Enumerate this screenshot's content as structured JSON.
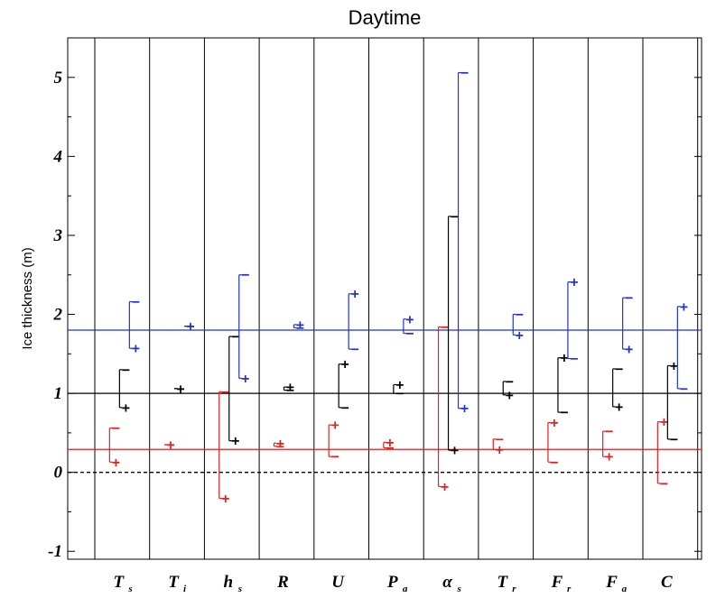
{
  "chart_data": {
    "type": "scatter",
    "title": "Daytime",
    "ylabel": "Ice thickness (m)",
    "ylim": [
      -1.1,
      5.5
    ],
    "yticks": [
      "-1",
      "0",
      "1",
      "2",
      "3",
      "4",
      "5"
    ],
    "categories": [
      {
        "main": "T",
        "sub": "s"
      },
      {
        "main": "T",
        "sub": "i"
      },
      {
        "main": "h",
        "sub": "s"
      },
      {
        "main": "R",
        "sub": ""
      },
      {
        "main": "U",
        "sub": ""
      },
      {
        "main": "P",
        "sub": "a"
      },
      {
        "main": "α",
        "sub": "s"
      },
      {
        "main": "T",
        "sub": "r"
      },
      {
        "main": "F",
        "sub": "r"
      },
      {
        "main": "F",
        "sub": "a"
      },
      {
        "main": "C",
        "sub": ""
      }
    ],
    "reference_lines": [
      {
        "color": "#2233cc",
        "value": 1.8
      },
      {
        "color": "#000000",
        "value": 1.0
      },
      {
        "color": "#dd2222",
        "value": 0.29
      },
      {
        "color": "#000000",
        "value": 0.0,
        "dashed": true
      }
    ],
    "series": [
      {
        "color": "#dd2222",
        "plus": [
          0.13,
          0.35,
          -0.33,
          0.37,
          0.6,
          0.38,
          -0.18,
          0.29,
          0.63,
          0.2,
          0.64
        ],
        "minus": [
          0.56,
          0.35,
          1.02,
          0.33,
          0.2,
          0.31,
          1.84,
          0.42,
          0.13,
          0.52,
          -0.14
        ]
      },
      {
        "color": "#000000",
        "plus": [
          0.82,
          1.06,
          0.4,
          1.08,
          1.37,
          1.11,
          0.28,
          0.98,
          1.45,
          0.83,
          1.35
        ],
        "minus": [
          1.3,
          1.06,
          1.72,
          1.04,
          0.82,
          1.0,
          3.24,
          1.15,
          0.76,
          1.31,
          0.42
        ]
      },
      {
        "color": "#2233cc",
        "plus": [
          1.57,
          1.85,
          1.19,
          1.87,
          2.26,
          1.94,
          0.81,
          1.74,
          2.41,
          1.56,
          2.1
        ],
        "minus": [
          2.16,
          1.85,
          2.5,
          1.83,
          1.56,
          1.76,
          5.06,
          2.0,
          1.44,
          2.21,
          1.06
        ]
      }
    ]
  }
}
